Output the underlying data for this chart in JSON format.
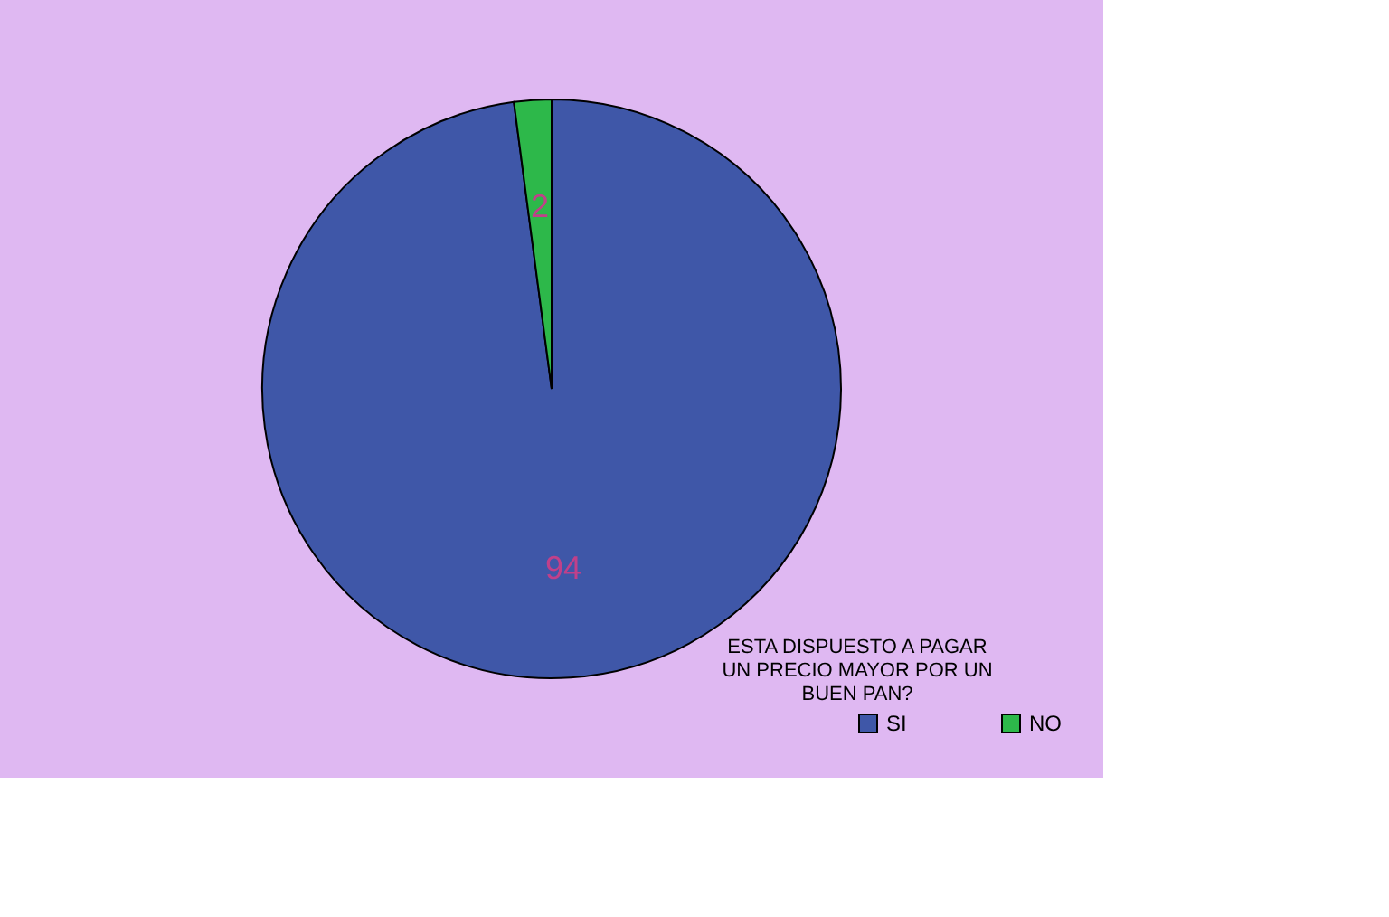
{
  "chart_data": {
    "type": "pie",
    "categories": [
      "SI",
      "NO"
    ],
    "values": [
      94,
      2
    ],
    "colors": [
      "#3f57a8",
      "#2db84a"
    ],
    "data_labels": true,
    "legend_title": "ESTA DISPUESTO A PAGAR UN PRECIO MAYOR POR UN BUEN PAN?",
    "legend": "bottom right"
  }
}
